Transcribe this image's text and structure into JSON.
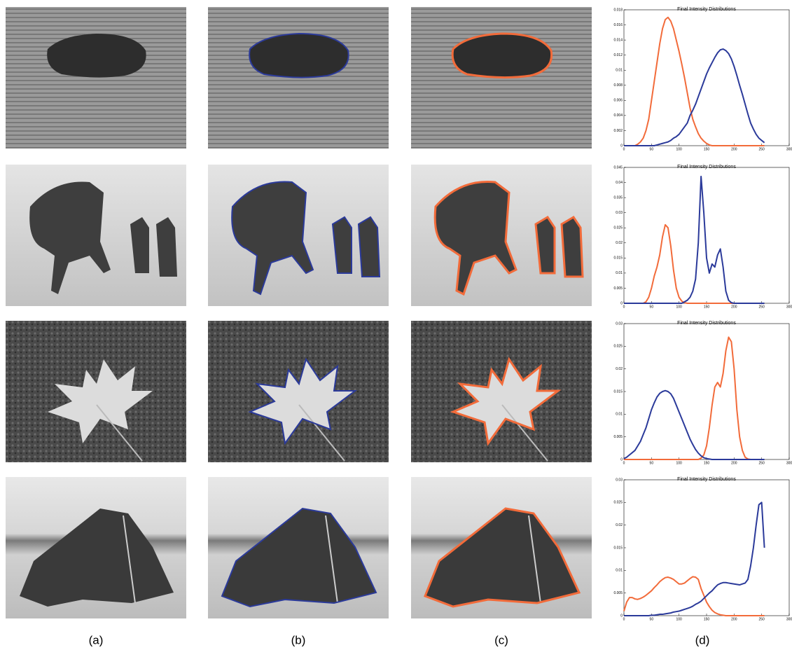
{
  "captions": [
    "(a)",
    "(b)",
    "(c)",
    "(d)"
  ],
  "chart_data": [
    {
      "type": "line",
      "title": "Final Intensity Distributions",
      "x": [
        0,
        5,
        10,
        15,
        20,
        25,
        30,
        35,
        40,
        45,
        50,
        55,
        60,
        65,
        70,
        75,
        80,
        85,
        90,
        95,
        100,
        105,
        110,
        115,
        120,
        125,
        130,
        135,
        140,
        145,
        150,
        155,
        160,
        165,
        170,
        175,
        180,
        185,
        190,
        195,
        200,
        205,
        210,
        215,
        220,
        225,
        230,
        235,
        240,
        245,
        250,
        255
      ],
      "xlim": [
        0,
        300
      ],
      "xticks": [
        0,
        50,
        100,
        150,
        200,
        250,
        300
      ],
      "ylim": [
        0,
        0.018
      ],
      "yticks": [
        0,
        0.002,
        0.004,
        0.006,
        0.008,
        0.01,
        0.012,
        0.014,
        0.016,
        0.018
      ],
      "series": [
        {
          "color": "#f26b3a",
          "values": [
            0,
            0,
            0,
            0,
            0,
            0.0002,
            0.0005,
            0.001,
            0.002,
            0.0035,
            0.006,
            0.0085,
            0.011,
            0.0135,
            0.0155,
            0.0167,
            0.017,
            0.0165,
            0.0155,
            0.014,
            0.0125,
            0.0108,
            0.009,
            0.007,
            0.005,
            0.0035,
            0.0025,
            0.0016,
            0.001,
            0.0006,
            0.0003,
            0.0001,
            0,
            0,
            0,
            0,
            0,
            0,
            0,
            0,
            0,
            0,
            0,
            0,
            0,
            0,
            0,
            0,
            0,
            0,
            0,
            0
          ]
        },
        {
          "color": "#2b3a9a",
          "values": [
            0,
            0,
            0,
            0,
            0,
            0,
            0,
            0,
            0,
            0,
            0,
            0,
            0.0001,
            0.0002,
            0.0003,
            0.0004,
            0.0005,
            0.0007,
            0.001,
            0.0012,
            0.0015,
            0.002,
            0.0025,
            0.003,
            0.004,
            0.0047,
            0.0055,
            0.0065,
            0.0075,
            0.0085,
            0.0095,
            0.0103,
            0.011,
            0.0117,
            0.0123,
            0.0127,
            0.0128,
            0.0126,
            0.0122,
            0.0115,
            0.0105,
            0.0093,
            0.008,
            0.0068,
            0.0055,
            0.0042,
            0.003,
            0.0022,
            0.0015,
            0.001,
            0.0007,
            0.0004
          ]
        }
      ]
    },
    {
      "type": "line",
      "title": "Final Intensity Distributions",
      "x": [
        0,
        5,
        10,
        15,
        20,
        25,
        30,
        35,
        40,
        45,
        50,
        55,
        60,
        65,
        70,
        75,
        80,
        85,
        90,
        95,
        100,
        105,
        110,
        115,
        120,
        125,
        130,
        135,
        140,
        145,
        150,
        155,
        160,
        165,
        170,
        175,
        180,
        185,
        190,
        195,
        200,
        205,
        210,
        215,
        220,
        225,
        230,
        235,
        240,
        245,
        250,
        255
      ],
      "xlim": [
        0,
        300
      ],
      "xticks": [
        0,
        50,
        100,
        150,
        200,
        250,
        300
      ],
      "ylim": [
        0,
        0.045
      ],
      "yticks": [
        0,
        0.005,
        0.01,
        0.015,
        0.02,
        0.025,
        0.03,
        0.035,
        0.04,
        0.045
      ],
      "series": [
        {
          "color": "#f26b3a",
          "values": [
            0,
            0,
            0,
            0,
            0,
            0,
            0,
            0,
            0.0005,
            0.002,
            0.005,
            0.009,
            0.012,
            0.016,
            0.022,
            0.026,
            0.025,
            0.019,
            0.011,
            0.005,
            0.002,
            0.0007,
            0.0002,
            0,
            0,
            0,
            0,
            0,
            0,
            0,
            0,
            0,
            0,
            0,
            0,
            0,
            0,
            0,
            0,
            0,
            0,
            0,
            0,
            0,
            0,
            0,
            0,
            0,
            0,
            0,
            0,
            0
          ]
        },
        {
          "color": "#2b3a9a",
          "values": [
            0,
            0,
            0,
            0,
            0,
            0,
            0,
            0,
            0,
            0,
            0,
            0,
            0,
            0,
            0,
            0,
            0,
            0,
            0,
            0,
            0,
            0,
            0.0005,
            0.001,
            0.002,
            0.004,
            0.008,
            0.02,
            0.042,
            0.03,
            0.015,
            0.01,
            0.013,
            0.012,
            0.016,
            0.018,
            0.012,
            0.004,
            0.001,
            0.0002,
            0,
            0,
            0,
            0,
            0,
            0,
            0,
            0,
            0,
            0,
            0,
            0
          ]
        }
      ]
    },
    {
      "type": "line",
      "title": "Final Intensity Distributions",
      "x": [
        0,
        5,
        10,
        15,
        20,
        25,
        30,
        35,
        40,
        45,
        50,
        55,
        60,
        65,
        70,
        75,
        80,
        85,
        90,
        95,
        100,
        105,
        110,
        115,
        120,
        125,
        130,
        135,
        140,
        145,
        150,
        155,
        160,
        165,
        170,
        175,
        180,
        185,
        190,
        195,
        200,
        205,
        210,
        215,
        220,
        225,
        230,
        235,
        240,
        245,
        250,
        255
      ],
      "xlim": [
        0,
        300
      ],
      "xticks": [
        0,
        50,
        100,
        150,
        200,
        250,
        300
      ],
      "ylim": [
        0,
        0.03
      ],
      "yticks": [
        0,
        0.005,
        0.01,
        0.015,
        0.02,
        0.025,
        0.03
      ],
      "series": [
        {
          "color": "#f26b3a",
          "values": [
            0,
            0,
            0,
            0,
            0,
            0,
            0,
            0,
            0,
            0,
            0,
            0,
            0,
            0,
            0,
            0,
            0,
            0,
            0,
            0,
            0,
            0,
            0,
            0,
            0,
            0,
            0,
            0,
            0.0003,
            0.001,
            0.003,
            0.007,
            0.012,
            0.016,
            0.017,
            0.016,
            0.019,
            0.024,
            0.027,
            0.026,
            0.02,
            0.011,
            0.005,
            0.002,
            0.0005,
            0.0001,
            0,
            0,
            0,
            0,
            0,
            0
          ]
        },
        {
          "color": "#2b3a9a",
          "values": [
            0.0002,
            0.0005,
            0.001,
            0.0015,
            0.002,
            0.003,
            0.004,
            0.0055,
            0.007,
            0.009,
            0.011,
            0.0125,
            0.0138,
            0.0146,
            0.015,
            0.0152,
            0.015,
            0.0145,
            0.0135,
            0.012,
            0.0105,
            0.009,
            0.0075,
            0.006,
            0.0045,
            0.0033,
            0.0022,
            0.0014,
            0.0008,
            0.0004,
            0.0002,
            0.0001,
            0,
            0,
            0,
            0,
            0,
            0,
            0,
            0,
            0,
            0,
            0,
            0,
            0,
            0,
            0,
            0,
            0,
            0,
            0,
            0
          ]
        }
      ]
    },
    {
      "type": "line",
      "title": "Final Intensity Distributions",
      "x": [
        0,
        5,
        10,
        15,
        20,
        25,
        30,
        35,
        40,
        45,
        50,
        55,
        60,
        65,
        70,
        75,
        80,
        85,
        90,
        95,
        100,
        105,
        110,
        115,
        120,
        125,
        130,
        135,
        140,
        145,
        150,
        155,
        160,
        165,
        170,
        175,
        180,
        185,
        190,
        195,
        200,
        205,
        210,
        215,
        220,
        225,
        230,
        235,
        240,
        245,
        250,
        255
      ],
      "xlim": [
        0,
        300
      ],
      "xticks": [
        0,
        50,
        100,
        150,
        200,
        250,
        300
      ],
      "ylim": [
        0,
        0.03
      ],
      "yticks": [
        0,
        0.005,
        0.01,
        0.015,
        0.02,
        0.025,
        0.03
      ],
      "series": [
        {
          "color": "#f26b3a",
          "values": [
            0.001,
            0.003,
            0.004,
            0.004,
            0.0037,
            0.0036,
            0.0038,
            0.0041,
            0.0045,
            0.005,
            0.0055,
            0.0062,
            0.0068,
            0.0075,
            0.008,
            0.0084,
            0.0085,
            0.0083,
            0.008,
            0.0075,
            0.007,
            0.007,
            0.0072,
            0.0077,
            0.0082,
            0.0086,
            0.0085,
            0.008,
            0.006,
            0.0045,
            0.003,
            0.002,
            0.0012,
            0.0007,
            0.0004,
            0.0002,
            0.0001,
            0,
            0,
            0,
            0,
            0,
            0,
            0,
            0,
            0,
            0,
            0,
            0,
            0,
            0,
            0
          ]
        },
        {
          "color": "#2b3a9a",
          "values": [
            0,
            0,
            0,
            0,
            0,
            0,
            0,
            0,
            0,
            0,
            0.0001,
            0.0001,
            0.0002,
            0.0003,
            0.0003,
            0.0004,
            0.0005,
            0.0006,
            0.0008,
            0.0009,
            0.001,
            0.0012,
            0.0014,
            0.0016,
            0.0018,
            0.0021,
            0.0025,
            0.0028,
            0.0032,
            0.0038,
            0.0044,
            0.005,
            0.0055,
            0.0062,
            0.0068,
            0.0071,
            0.0073,
            0.0073,
            0.0072,
            0.0071,
            0.007,
            0.0069,
            0.0068,
            0.007,
            0.0072,
            0.008,
            0.011,
            0.015,
            0.02,
            0.0245,
            0.025,
            0.015
          ]
        }
      ]
    }
  ]
}
